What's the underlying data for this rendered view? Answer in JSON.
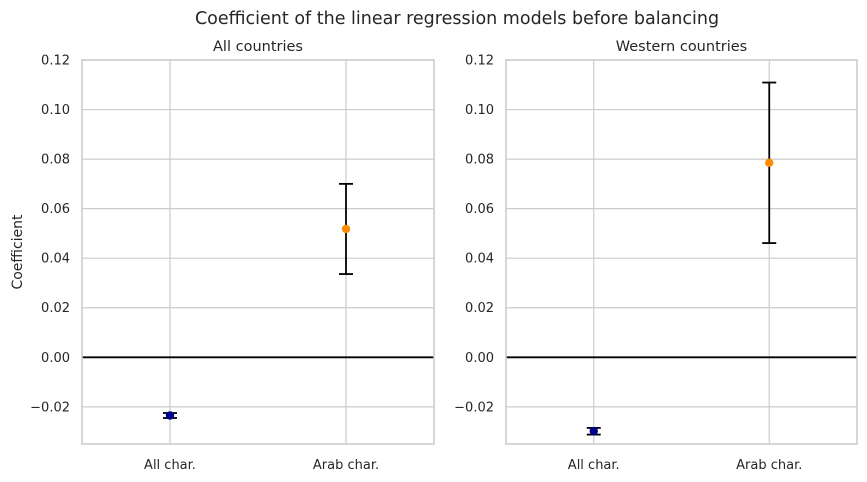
{
  "figure_title": "Coefficient of the linear regression models before balancing",
  "chart_data": [
    {
      "type": "scatter",
      "title": "All countries",
      "xlabel": "",
      "ylabel": "Coefficient",
      "categories": [
        "All char.",
        "Arab char."
      ],
      "ylim": [
        -0.035,
        0.12
      ],
      "yticks": [
        -0.02,
        0.0,
        0.02,
        0.04,
        0.06,
        0.08,
        0.1,
        0.12
      ],
      "ytick_labels": [
        "−0.02",
        "0.00",
        "0.02",
        "0.04",
        "0.06",
        "0.08",
        "0.10",
        "0.12"
      ],
      "grid": true,
      "reference_line_y": 0.0,
      "points": [
        {
          "category": "All char.",
          "value": -0.0235,
          "err_low": -0.0245,
          "err_high": -0.0225,
          "color": "#00008b"
        },
        {
          "category": "Arab char.",
          "value": 0.0518,
          "err_low": 0.0336,
          "err_high": 0.07,
          "color": "#ff8c00"
        }
      ]
    },
    {
      "type": "scatter",
      "title": "Western countries",
      "xlabel": "",
      "ylabel": "",
      "categories": [
        "All char.",
        "Arab char."
      ],
      "ylim": [
        -0.035,
        0.12
      ],
      "yticks": [
        -0.02,
        0.0,
        0.02,
        0.04,
        0.06,
        0.08,
        0.1,
        0.12
      ],
      "ytick_labels": [
        "−0.02",
        "0.00",
        "0.02",
        "0.04",
        "0.06",
        "0.08",
        "0.10",
        "0.12"
      ],
      "grid": true,
      "reference_line_y": 0.0,
      "points": [
        {
          "category": "All char.",
          "value": -0.0298,
          "err_low": -0.0312,
          "err_high": -0.0285,
          "color": "#00008b"
        },
        {
          "category": "Arab char.",
          "value": 0.0785,
          "err_low": 0.0461,
          "err_high": 0.1109,
          "color": "#ff8c00"
        }
      ]
    }
  ]
}
